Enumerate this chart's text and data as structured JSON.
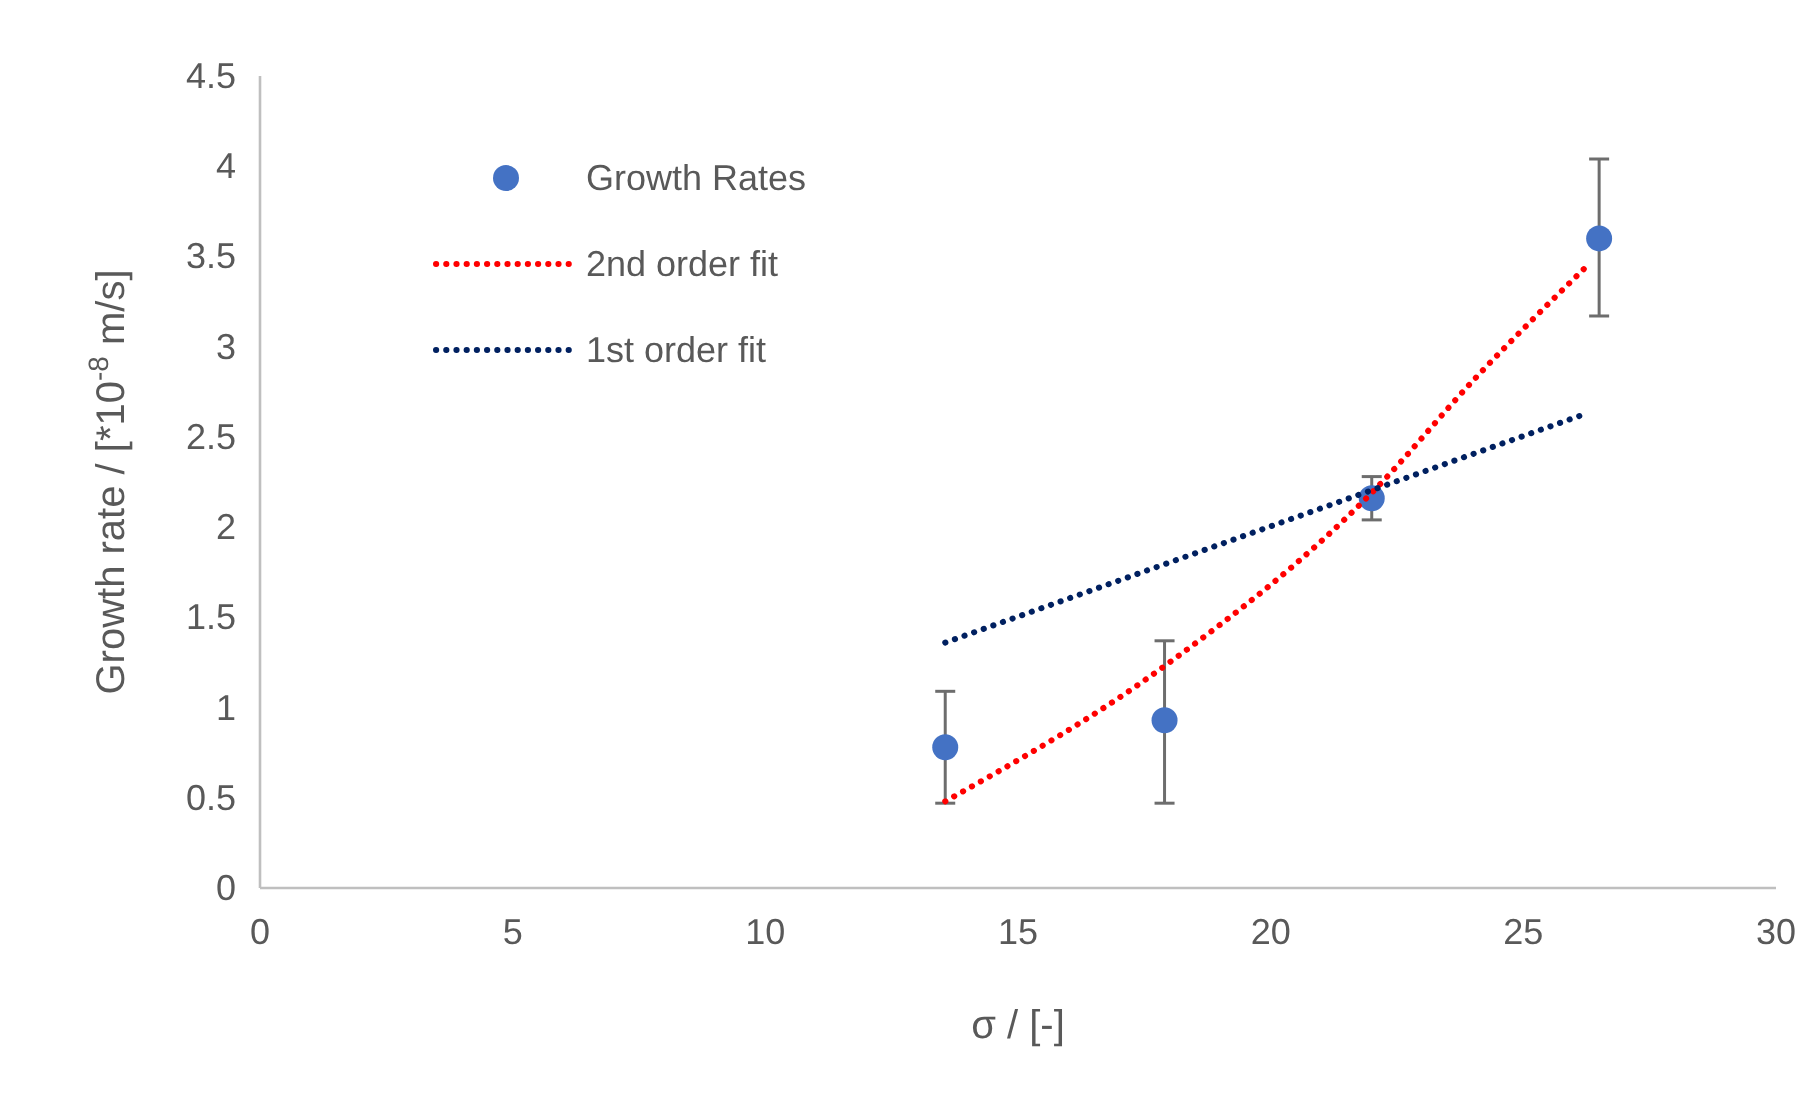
{
  "chart_data": {
    "type": "scatter",
    "xlabel": "σ / [-]",
    "ylabel": "Growth rate / [*10$^{-8}$ m/s]",
    "xlim": [
      0,
      30
    ],
    "xticks": [
      0,
      5,
      10,
      15,
      20,
      25,
      30
    ],
    "ylim": [
      0,
      4.5
    ],
    "yticks": [
      0,
      0.5,
      1,
      1.5,
      2,
      2.5,
      3,
      3.5,
      4,
      4.5
    ],
    "grid": false,
    "legend": "top left",
    "series": [
      {
        "name": "Growth Rates",
        "color": "#4472c4",
        "marker": "circle",
        "x": [
          13.56,
          17.9,
          22.0,
          26.5
        ],
        "values": [
          0.78,
          0.93,
          2.16,
          3.6
        ],
        "errors": [
          [
            0.47,
            1.09
          ],
          [
            0.47,
            1.37
          ],
          [
            2.04,
            2.28
          ],
          [
            3.17,
            4.04
          ]
        ]
      },
      {
        "name": "2nd order fit",
        "type": "line",
        "color": "#ff0000",
        "marker": "none",
        "line_style": "dotted",
        "x": [
          13.56,
          17.9,
          22.0,
          24.1,
          26.27
        ],
        "values": [
          0.48,
          1.23,
          2.19,
          2.84,
          3.45
        ]
      },
      {
        "name": "1st order fit",
        "type": "line",
        "color": "#002060",
        "marker": "none",
        "line_style": "dotted",
        "x": [
          13.56,
          26.25
        ],
        "values": [
          1.36,
          2.63
        ]
      }
    ]
  }
}
